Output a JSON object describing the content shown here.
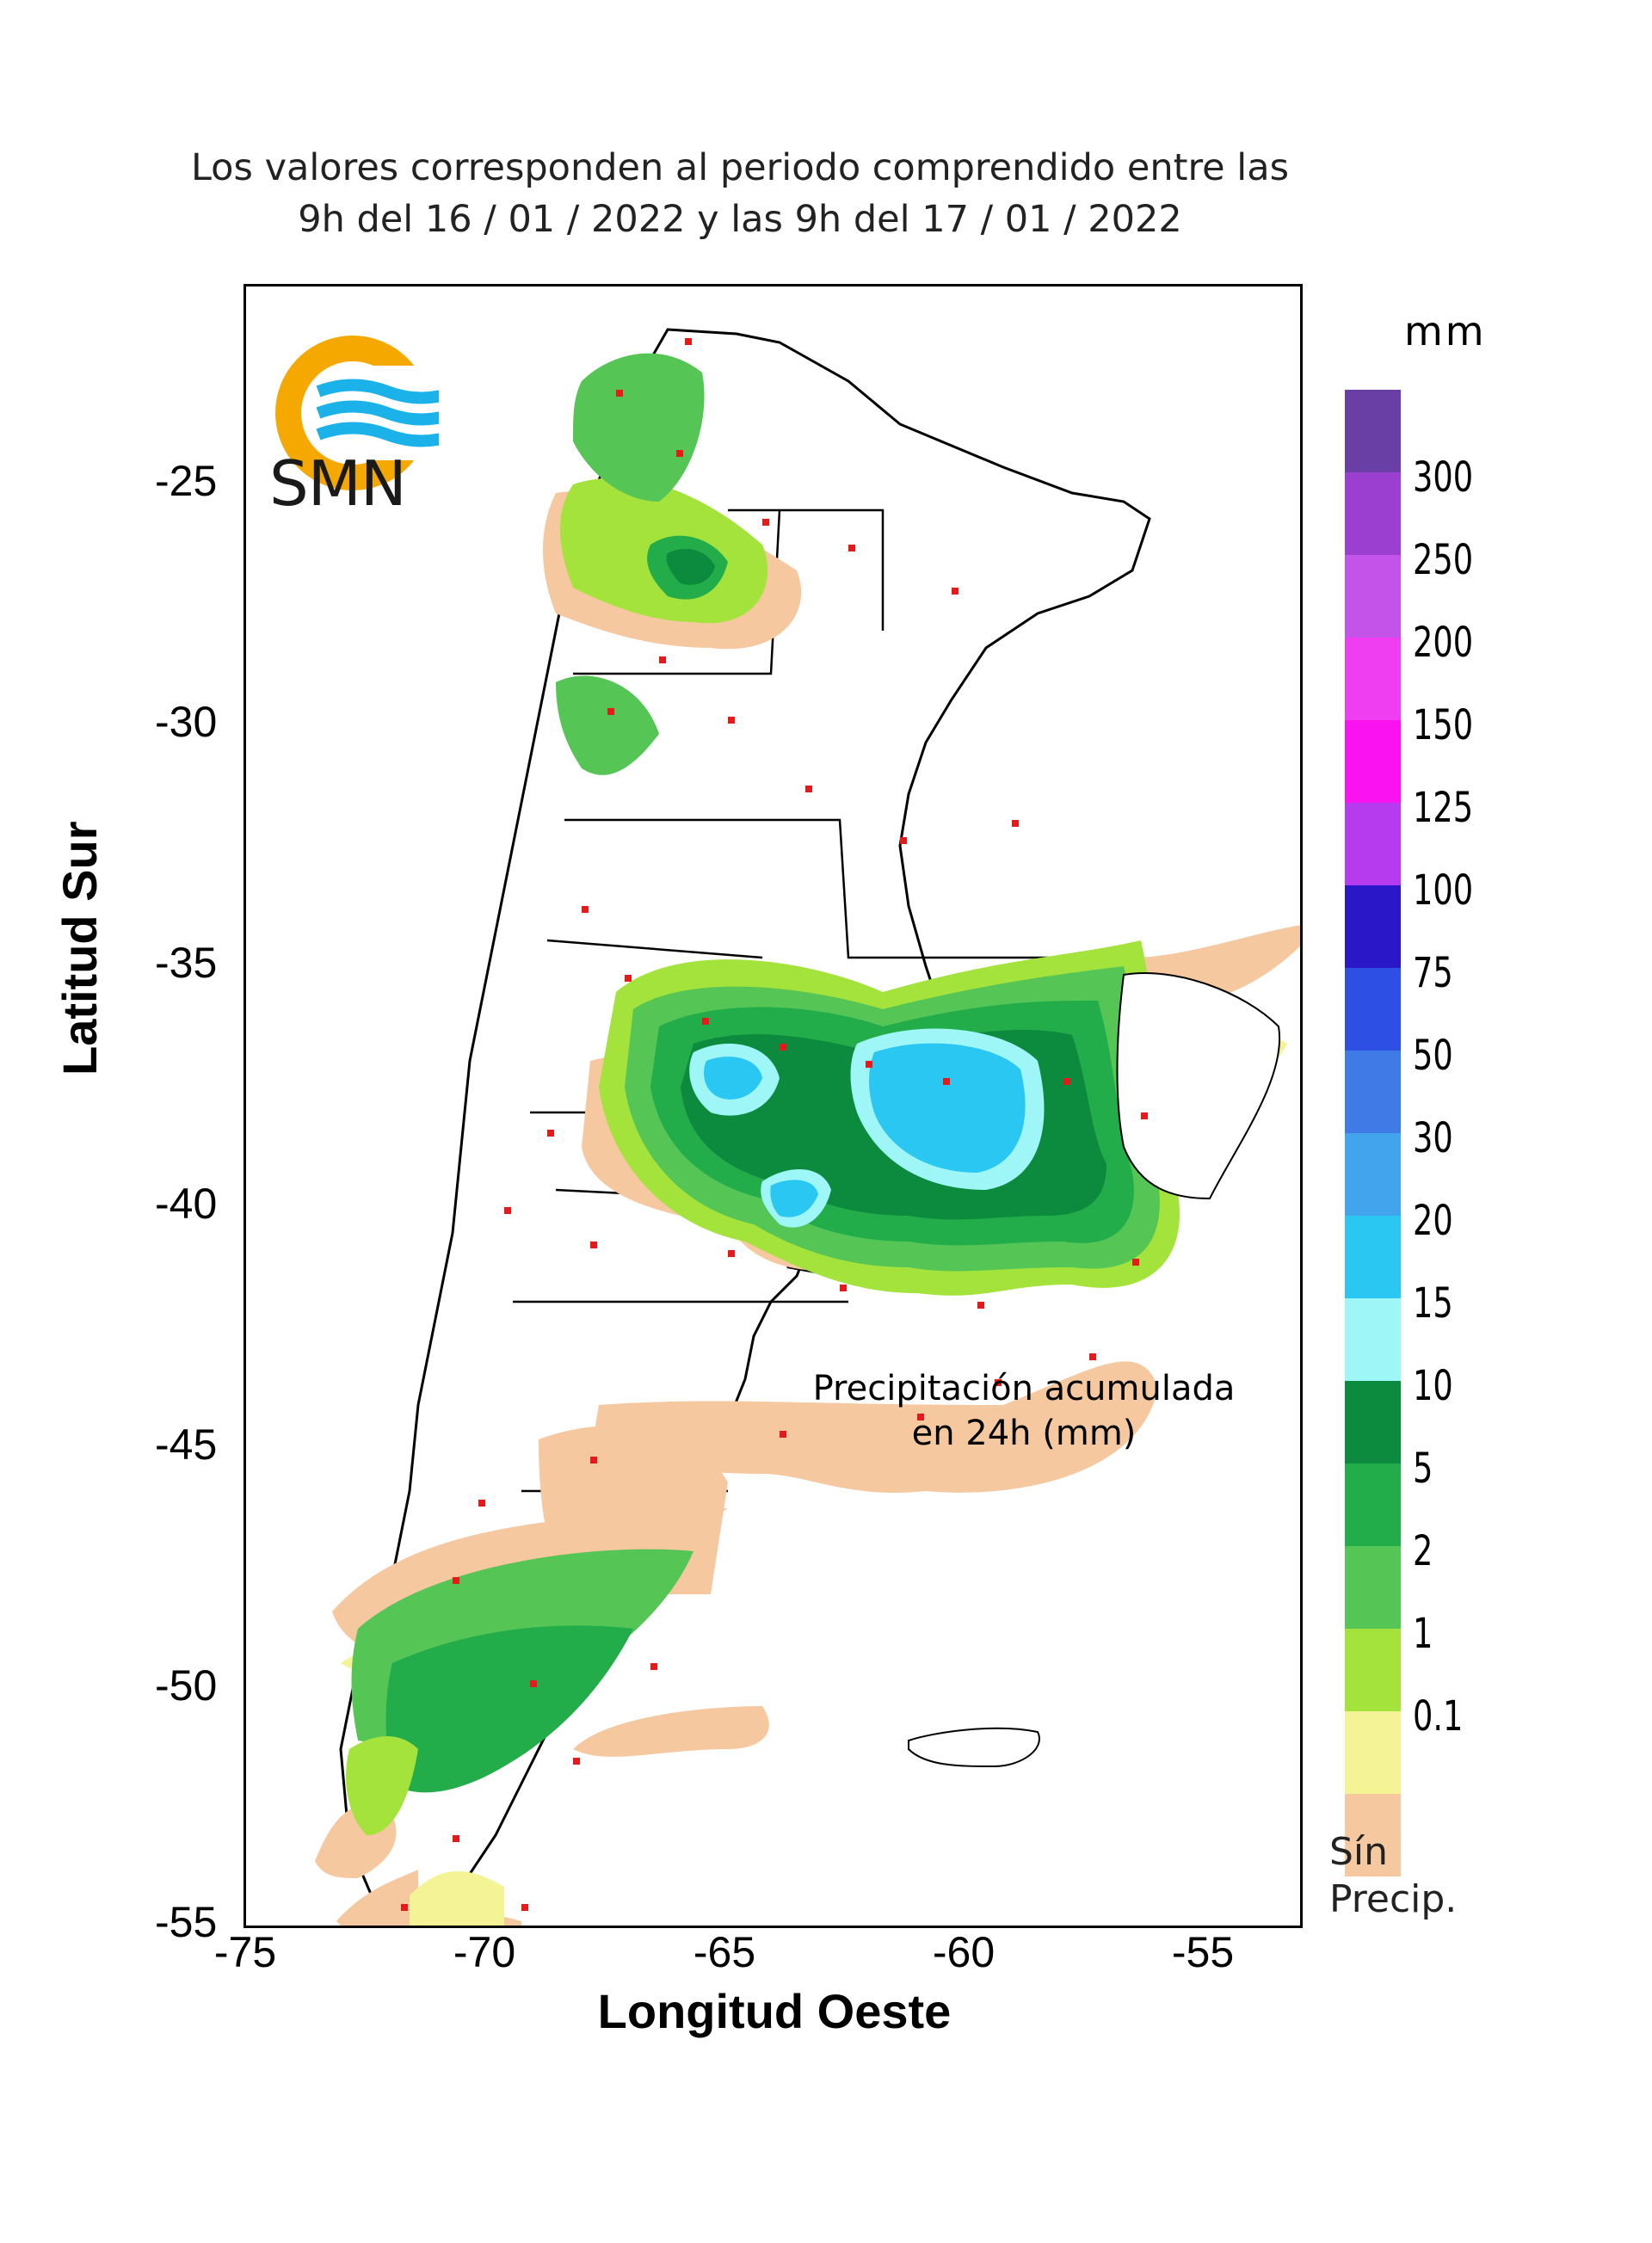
{
  "title": {
    "line1": "Los valores corresponden al periodo comprendido entre las",
    "line2": "9h del 16 / 01 / 2022  y las 9h del 17 / 01 / 2022"
  },
  "logo": {
    "text": "SMN",
    "icon": "smn-logo-icon"
  },
  "axes": {
    "xlabel": "Longitud Oeste",
    "ylabel": "Latitud Sur",
    "xticks": [
      "-75",
      "-70",
      "-65",
      "-60",
      "-55"
    ],
    "yticks": [
      "-25",
      "-30",
      "-35",
      "-40",
      "-45",
      "-50",
      "-55"
    ],
    "xlim": [
      -75,
      -53
    ],
    "ylim": [
      -55,
      -21
    ]
  },
  "legend": {
    "unit": "mm",
    "classes": [
      {
        "label": "",
        "color": "#6a3fa5"
      },
      {
        "label": "300",
        "color": "#9b3fd0"
      },
      {
        "label": "250",
        "color": "#c453ea"
      },
      {
        "label": "200",
        "color": "#ef3ef2"
      },
      {
        "label": "150",
        "color": "#fa12f0"
      },
      {
        "label": "125",
        "color": "#b73bee"
      },
      {
        "label": "100",
        "color": "#2a17c8"
      },
      {
        "label": "75",
        "color": "#2e4fe3"
      },
      {
        "label": "50",
        "color": "#3f7ae6"
      },
      {
        "label": "30",
        "color": "#41a4ed"
      },
      {
        "label": "20",
        "color": "#2bc7f3"
      },
      {
        "label": "15",
        "color": "#9ef6f6"
      },
      {
        "label": "10",
        "color": "#0c8b3e"
      },
      {
        "label": "5",
        "color": "#22ad4a"
      },
      {
        "label": "2",
        "color": "#55c556"
      },
      {
        "label": "1",
        "color": "#a3e33c"
      },
      {
        "label": "0.1",
        "color": "#f4f497"
      },
      {
        "label": "",
        "color": "#f6c8a0"
      }
    ],
    "nodata_line1": "Sín",
    "nodata_line2": "Precip."
  },
  "annotation": {
    "line1": "Precipitación acumulada",
    "line2": "en 24h (mm)"
  }
}
